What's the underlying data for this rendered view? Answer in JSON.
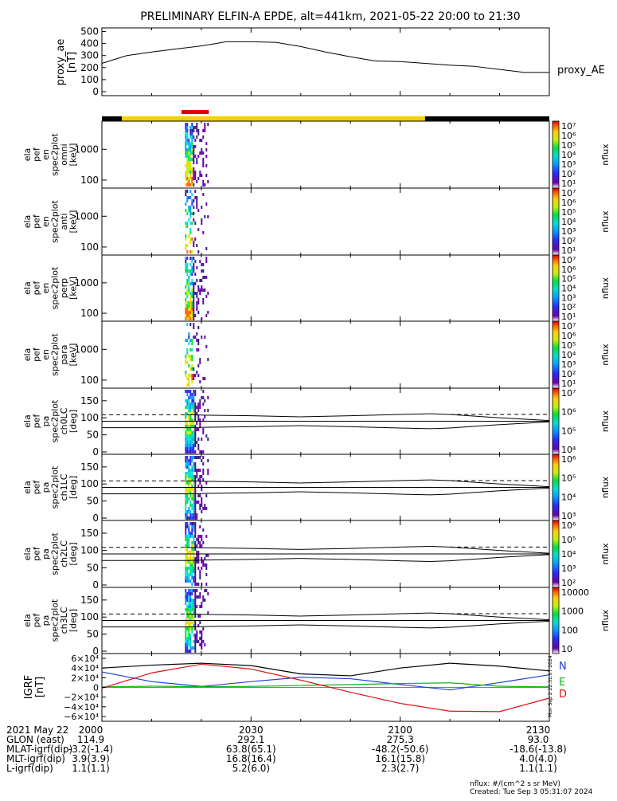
{
  "title": "PRELIMINARY ELFIN-A EPDE, alt=441km, 2021-05-22 20:00 to 21:30",
  "colors": {
    "bar_red": "#e00000",
    "bar_yellow": "#f5d000",
    "bar_black": "#000000",
    "bx_blue": "#1f3fd8",
    "by_green": "#16b016",
    "bz_red": "#e01010"
  },
  "ae_panel": {
    "ylabel_line1": "proxy_ae",
    "ylabel_line2": "[nT]",
    "yticks": [
      "500",
      "400",
      "300",
      "200",
      "100",
      "0"
    ],
    "legend": "proxy_AE"
  },
  "spec_panels": [
    {
      "lines": [
        "ela",
        "pef",
        "en",
        "spec2plot",
        "omni",
        "[keV]"
      ],
      "yticks": [
        "1000",
        "100"
      ]
    },
    {
      "lines": [
        "ela",
        "pef",
        "en",
        "spec2plot",
        "anti",
        "[keV]"
      ],
      "yticks": [
        "1000",
        "100"
      ]
    },
    {
      "lines": [
        "ela",
        "pef",
        "en",
        "spec2plot",
        "perp",
        "[keV]"
      ],
      "yticks": [
        "1000",
        "100"
      ]
    },
    {
      "lines": [
        "ela",
        "pef",
        "en",
        "spec2plot",
        "para",
        "[keV]"
      ],
      "yticks": [
        "1000",
        "100"
      ]
    }
  ],
  "pa_panels": [
    {
      "lines": [
        "ela",
        "pef",
        "pa",
        "spec2plot",
        "ch0LC",
        "[deg]"
      ],
      "yticks": [
        "150",
        "100",
        "50",
        "0"
      ]
    },
    {
      "lines": [
        "ela",
        "pef",
        "pa",
        "spec2plot",
        "ch1LC",
        "[deg]"
      ],
      "yticks": [
        "150",
        "100",
        "50",
        "0"
      ]
    },
    {
      "lines": [
        "ela",
        "pef",
        "pa",
        "spec2plot",
        "ch2LC",
        "[deg]"
      ],
      "yticks": [
        "150",
        "100",
        "50",
        "0"
      ]
    },
    {
      "lines": [
        "ela",
        "pef",
        "pa",
        "spec2plot",
        "ch3LC",
        "[deg]"
      ],
      "yticks": [
        "150",
        "100",
        "50",
        "0"
      ]
    }
  ],
  "colorbars": [
    {
      "unit": "nflux",
      "ticks": [
        "10⁷",
        "10⁶",
        "10⁵",
        "10⁴",
        "10³",
        "10²",
        "10¹"
      ]
    },
    {
      "unit": "nflux",
      "ticks": [
        "10⁷",
        "10⁶",
        "10⁵",
        "10⁴",
        "10³",
        "10²",
        "10¹"
      ]
    },
    {
      "unit": "nflux",
      "ticks": [
        "10⁷",
        "10⁶",
        "10⁵",
        "10⁴",
        "10³",
        "10²",
        "10¹"
      ]
    },
    {
      "unit": "nflux",
      "ticks": [
        "10⁷",
        "10⁶",
        "10⁵",
        "10⁴",
        "10³",
        "10²",
        "10¹"
      ]
    },
    {
      "unit": "nflux",
      "ticks": [
        "10⁷",
        "10⁶",
        "10⁵",
        "10⁴"
      ]
    },
    {
      "unit": "nflux",
      "ticks": [
        "10⁶",
        "10⁵",
        "10⁴",
        "10³"
      ]
    },
    {
      "unit": "nflux",
      "ticks": [
        "10⁶",
        "10⁵",
        "10⁴",
        "10³",
        "10²"
      ]
    },
    {
      "unit": "nflux",
      "ticks": [
        "10000",
        "1000",
        "100",
        "10"
      ]
    }
  ],
  "igrf_panel": {
    "ylabel_line1": "IGRF",
    "ylabel_line2": "[nT]",
    "yticks": [
      "6×10⁴",
      "4×10⁴",
      "2×10⁴",
      "0",
      "−2×10⁴",
      "−4×10⁴",
      "−6×10⁴"
    ],
    "legend": [
      "N",
      "E",
      "D"
    ],
    "stamp": "Mon Sep  2 22:31:07 2024"
  },
  "footer": {
    "row_labels": [
      "2021 May 22",
      "GLON (east)",
      "MLAT-igrf(dip)",
      "MLT-igrf(dip)",
      "L-igrf(dip)"
    ],
    "columns": [
      {
        "time": "2000",
        "values": [
          "114.9",
          "-3.2(-1.4)",
          "3.9(3.9)",
          "1.1(1.1)"
        ]
      },
      {
        "time": "2030",
        "values": [
          "292.1",
          "63.8(65.1)",
          "16.8(16.4)",
          "5.2(6.0)"
        ]
      },
      {
        "time": "2100",
        "values": [
          "275.3",
          "-48.2(-50.6)",
          "16.1(15.8)",
          "2.3(2.7)"
        ]
      },
      {
        "time": "2130",
        "values": [
          "93.0",
          "-18.6(-13.8)",
          "4.0(4.0)",
          "1.1(1.1)"
        ]
      }
    ],
    "note_units": "nflux: #/(cm^2 s sr MeV)",
    "note_created": "Created: Tue Sep  3 05:31:07 2024"
  },
  "chart_data": [
    {
      "type": "line",
      "title": "PRELIMINARY ELFIN-A EPDE, alt=441km, 2021-05-22 20:00 to 21:30",
      "ylabel": "proxy_ae [nT]",
      "ylim": [
        0,
        550
      ],
      "x_minutes": [
        0,
        5,
        10,
        15,
        20,
        25,
        30,
        35,
        40,
        45,
        50,
        55,
        60,
        65,
        70,
        75,
        80,
        85,
        90
      ],
      "series": [
        {
          "name": "proxy_AE",
          "values": [
            235,
            300,
            330,
            355,
            380,
            415,
            415,
            410,
            375,
            330,
            290,
            255,
            250,
            235,
            220,
            210,
            185,
            160,
            160
          ]
        }
      ]
    },
    {
      "type": "line",
      "title": "",
      "ylabel": "pa spec2plot [deg]",
      "ylim": [
        0,
        180
      ],
      "x_minutes": [
        17,
        20,
        30,
        40,
        50,
        60,
        66,
        70,
        80,
        90
      ],
      "series": [
        {
          "name": "",
          "values": [
            109,
            108,
            106,
            103,
            106,
            110,
            112,
            110,
            100,
            92
          ]
        },
        {
          "name": "",
          "values": [
            71,
            72,
            74,
            77,
            74,
            70,
            68,
            70,
            80,
            88
          ]
        }
      ]
    },
    {
      "type": "line",
      "title": "",
      "ylabel": "IGRF [nT]",
      "ylim": [
        -65000,
        65000
      ],
      "x_minutes": [
        0,
        10,
        20,
        30,
        40,
        50,
        60,
        70,
        80,
        90
      ],
      "series": [
        {
          "name": "N",
          "values": [
            32000,
            12000,
            2000,
            12000,
            21000,
            18000,
            6000,
            -5000,
            10000,
            26000
          ]
        },
        {
          "name": "E",
          "values": [
            1000,
            2500,
            1500,
            2000,
            4000,
            6000,
            8000,
            9500,
            2500,
            1000
          ]
        },
        {
          "name": "D",
          "values": [
            -1500,
            30000,
            48000,
            38000,
            15000,
            -10000,
            -33000,
            -49000,
            -50000,
            -22000
          ]
        },
        {
          "name": "",
          "values": [
            40000,
            46000,
            50000,
            45000,
            28000,
            24000,
            40000,
            50000,
            44000,
            34000
          ]
        }
      ]
    }
  ],
  "spectrogram": {
    "time_range_minutes": [
      16.7,
      21.5
    ],
    "energy_range_keV": [
      50,
      6500
    ],
    "coverage_bar": {
      "red_span_minutes": [
        16.0,
        21.5
      ],
      "yellow_span_minutes": [
        4.0,
        65.0
      ]
    }
  }
}
